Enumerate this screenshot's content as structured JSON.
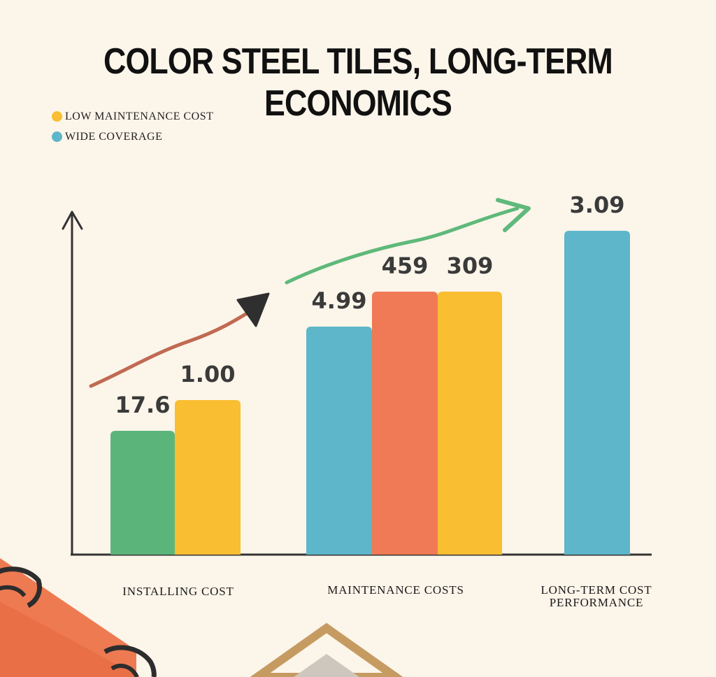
{
  "title": "COLOR STEEL TILES, LONG-TERM ECONOMICS",
  "legend": [
    {
      "label": "LOW MAINTENANCE COST",
      "color": "#f9be31"
    },
    {
      "label": "WIDE COVERAGE",
      "color": "#5db6c9"
    }
  ],
  "chart_data": {
    "type": "bar",
    "categories": [
      [
        "INSTALLING COST"
      ],
      [
        "MAINTENANCE COSTS"
      ],
      [
        "LONG-TERM COST",
        "PERFORMANCE"
      ]
    ],
    "bars": [
      {
        "category": 0,
        "value": "17.6",
        "color": "#5bb57b"
      },
      {
        "category": 0,
        "value": "1.00",
        "color": "#f9be31"
      },
      {
        "category": 1,
        "value": "4.99",
        "color": "#5db6c9"
      },
      {
        "category": 1,
        "value": "459",
        "color": "#ef7a55"
      },
      {
        "category": 1,
        "value": "309",
        "color": "#f9be31"
      },
      {
        "category": 2,
        "value": "3.09",
        "color": "#5db6c9"
      }
    ],
    "legend_position": "top-left",
    "grid": false,
    "trend_arrows": [
      {
        "color": "#c06a52"
      },
      {
        "color": "#5fb97a"
      }
    ]
  }
}
